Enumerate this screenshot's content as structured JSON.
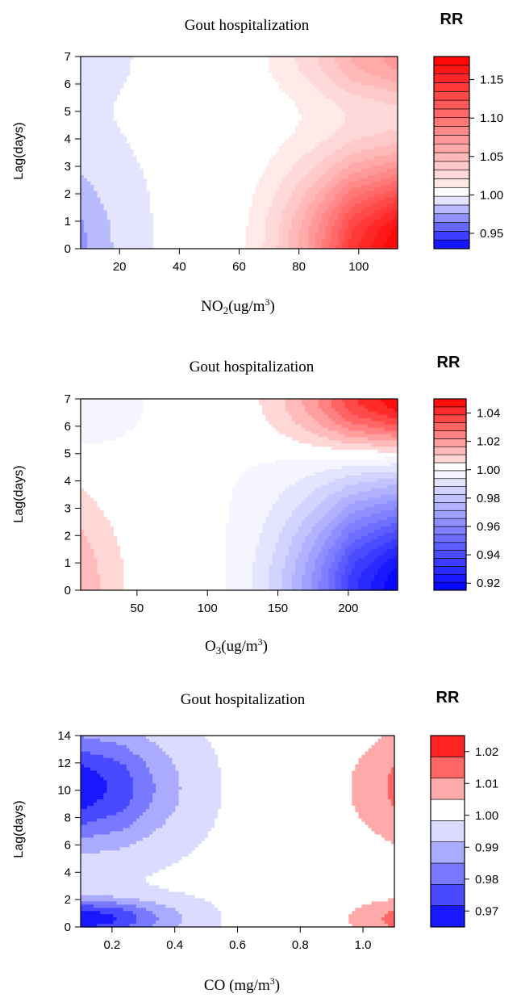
{
  "chart_data": [
    {
      "type": "heatmap",
      "title": "Gout hospitalization",
      "colorbar_title": "RR",
      "xlabel": "NO2(ug/m3)",
      "xlabel_parts": {
        "base": "NO",
        "sub": "2",
        "mid": "(ug/m",
        "sup": "3",
        "end": ")"
      },
      "ylabel": "Lag(days)",
      "xlim": [
        7,
        113
      ],
      "ylim": [
        0,
        7
      ],
      "xticks": [
        "20",
        "40",
        "60",
        "80",
        "100"
      ],
      "yticks": [
        "0",
        "1",
        "2",
        "3",
        "4",
        "5",
        "6",
        "7"
      ],
      "colorbar_range": [
        0.93,
        1.18
      ],
      "colorbar_ticks": [
        "0.95",
        "1.00",
        "1.05",
        "1.10",
        "1.15"
      ],
      "reference_x": 45,
      "low_color": "#0000ff",
      "high_color": "#ff0000"
    },
    {
      "type": "heatmap",
      "title": "Gout hospitalization",
      "colorbar_title": "RR",
      "xlabel": "O3(ug/m3)",
      "xlabel_parts": {
        "base": "O",
        "sub": "3",
        "mid": "(ug/m",
        "sup": "3",
        "end": ")"
      },
      "ylabel": "Lag(days)",
      "xlim": [
        10,
        235
      ],
      "ylim": [
        0,
        7
      ],
      "xticks": [
        "50",
        "100",
        "150",
        "200"
      ],
      "yticks": [
        "0",
        "1",
        "2",
        "3",
        "4",
        "5",
        "6",
        "7"
      ],
      "colorbar_range": [
        0.915,
        1.05
      ],
      "colorbar_ticks": [
        "0.92",
        "0.94",
        "0.96",
        "0.98",
        "1.00",
        "1.02",
        "1.04"
      ],
      "reference_x": 90,
      "low_color": "#0000ff",
      "high_color": "#ff0000"
    },
    {
      "type": "heatmap",
      "title": "Gout hospitalization",
      "colorbar_title": "RR",
      "xlabel": "CO (mg/m3)",
      "xlabel_parts": {
        "base": "CO (mg/m",
        "sub": "",
        "mid": "",
        "sup": "3",
        "end": ")"
      },
      "ylabel": "Lag(days)",
      "xlim": [
        0.1,
        1.1
      ],
      "ylim": [
        0,
        14
      ],
      "xticks": [
        "0.2",
        "0.4",
        "0.6",
        "0.8",
        "1.0"
      ],
      "yticks": [
        "0",
        "2",
        "4",
        "6",
        "8",
        "10",
        "12",
        "14"
      ],
      "colorbar_range": [
        0.965,
        1.025
      ],
      "colorbar_ticks": [
        "0.97",
        "0.98",
        "0.99",
        "1.00",
        "1.01",
        "1.02"
      ],
      "reference_x": 0.7,
      "low_color": "#0000ff",
      "high_color": "#ff0000"
    }
  ]
}
